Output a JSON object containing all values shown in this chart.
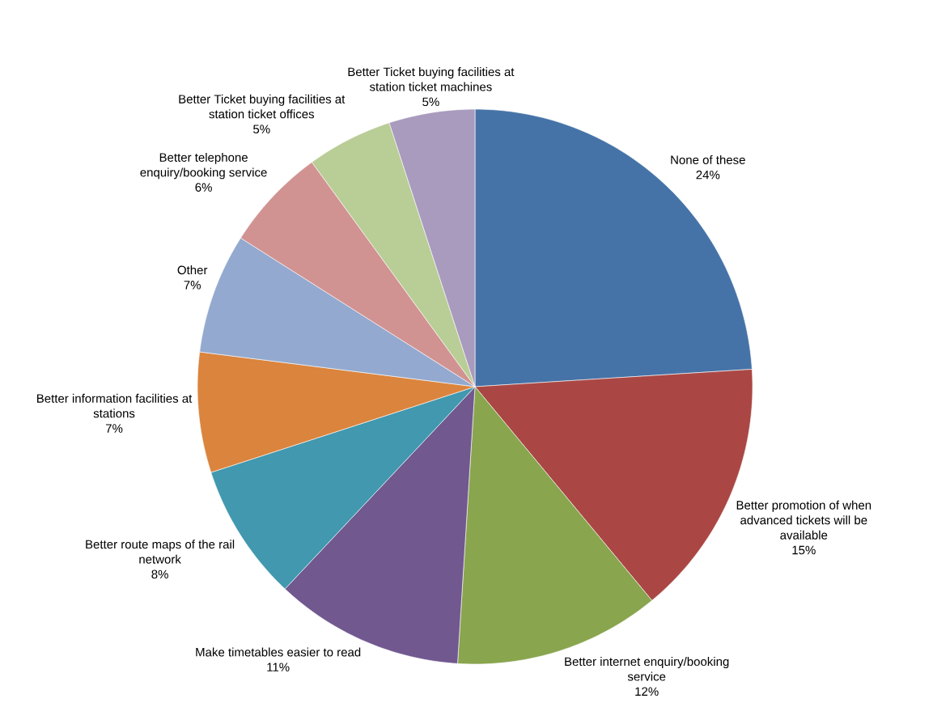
{
  "chart_data": {
    "type": "pie",
    "categories": [
      "None of these",
      "Better promotion of when advanced tickets will be available",
      "Better internet enquiry/booking service",
      "Make timetables easier to read",
      "Better route maps of the rail network",
      "Better information facilities at stations",
      "Other",
      "Better telephone enquiry/booking service",
      "Better Ticket buying facilities at station ticket offices",
      "Better Ticket buying facilities at station ticket machines"
    ],
    "values": [
      24,
      15,
      12,
      11,
      8,
      7,
      7,
      6,
      5,
      5
    ],
    "value_labels": [
      "24%",
      "15%",
      "12%",
      "11%",
      "8%",
      "7%",
      "7%",
      "6%",
      "5%",
      "5%"
    ],
    "colors": [
      "#4673a7",
      "#aa4744",
      "#89a54e",
      "#71588f",
      "#4198af",
      "#db843d",
      "#93a9cf",
      "#d19392",
      "#b9cd96",
      "#a99bbd"
    ]
  }
}
